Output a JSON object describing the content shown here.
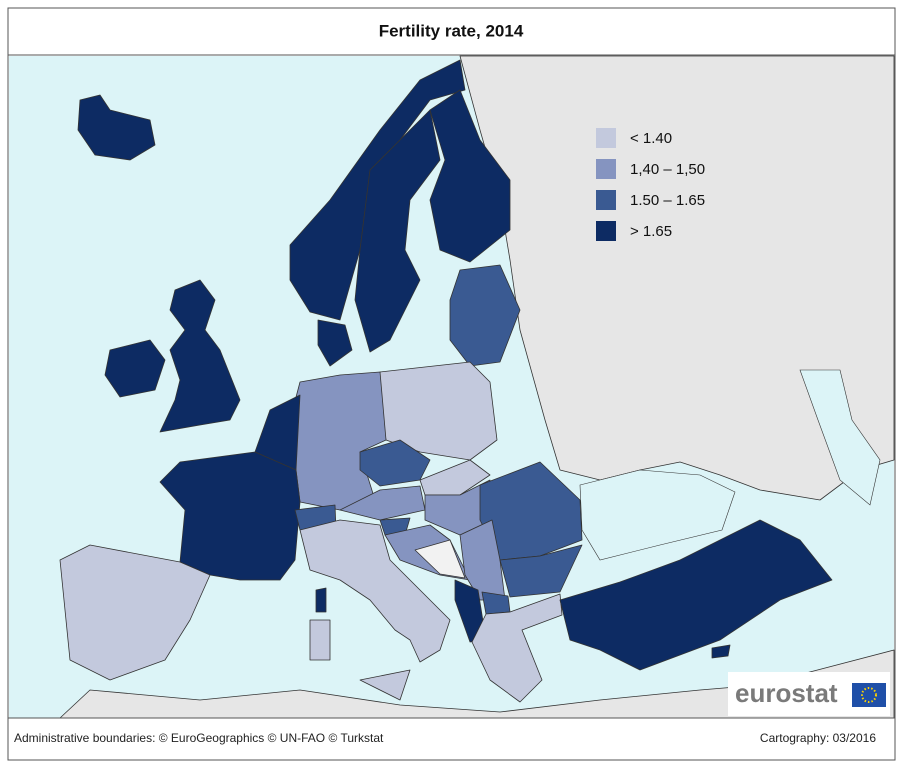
{
  "title": "Fertility rate, 2014",
  "legend": [
    {
      "label": "< 1.40",
      "color": "#c3c9dd"
    },
    {
      "label": "1,40 – 1,50",
      "color": "#8594c0"
    },
    {
      "label": "1.50 – 1.65",
      "color": "#3a5a92"
    },
    {
      "label": "> 1.65",
      "color": "#0d2b63"
    }
  ],
  "logo": "eurostat",
  "footer": {
    "left": "Administrative boundaries: © EuroGeographics © UN-FAO © Turkstat",
    "right": "Cartography: 03/2016"
  }
}
